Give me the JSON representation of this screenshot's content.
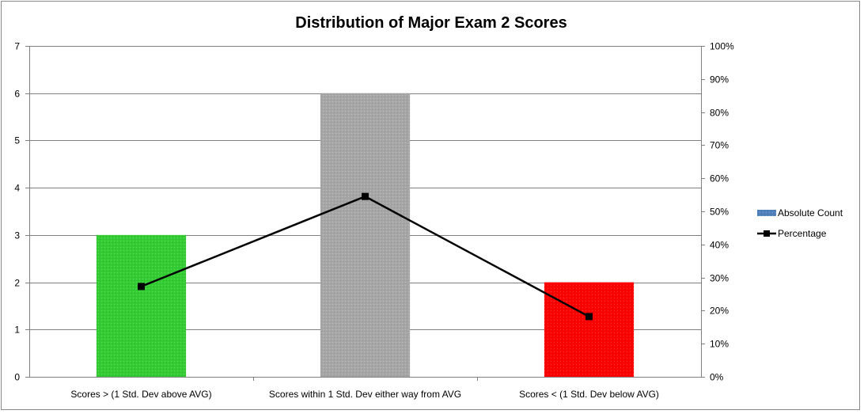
{
  "chart_data": {
    "type": "bar",
    "title": "Distribution of Major Exam 2 Scores",
    "categories": [
      "Scores > (1 Std. Dev above AVG)",
      "Scores within 1 Std. Dev either way from AVG",
      "Scores < (1 Std. Dev below AVG)"
    ],
    "series": [
      {
        "name": "Absolute Count",
        "type": "bar",
        "axis": "left",
        "values": [
          3,
          6,
          2
        ],
        "colors": [
          "#33cc33",
          "#a6a6a6",
          "#ff0000"
        ]
      },
      {
        "name": "Percentage",
        "type": "line",
        "axis": "right",
        "values": [
          27.3,
          54.5,
          18.2
        ],
        "color": "#000000"
      }
    ],
    "y_left": {
      "min": 0,
      "max": 7,
      "ticks": [
        "0",
        "1",
        "2",
        "3",
        "4",
        "5",
        "6",
        "7"
      ]
    },
    "y_right": {
      "min": 0,
      "max": 100,
      "ticks": [
        "0%",
        "10%",
        "20%",
        "30%",
        "40%",
        "50%",
        "60%",
        "70%",
        "80%",
        "90%",
        "100%"
      ]
    },
    "grid": true,
    "legend_position": "right",
    "legend_colors": {
      "bar": "#4f81bd"
    }
  }
}
